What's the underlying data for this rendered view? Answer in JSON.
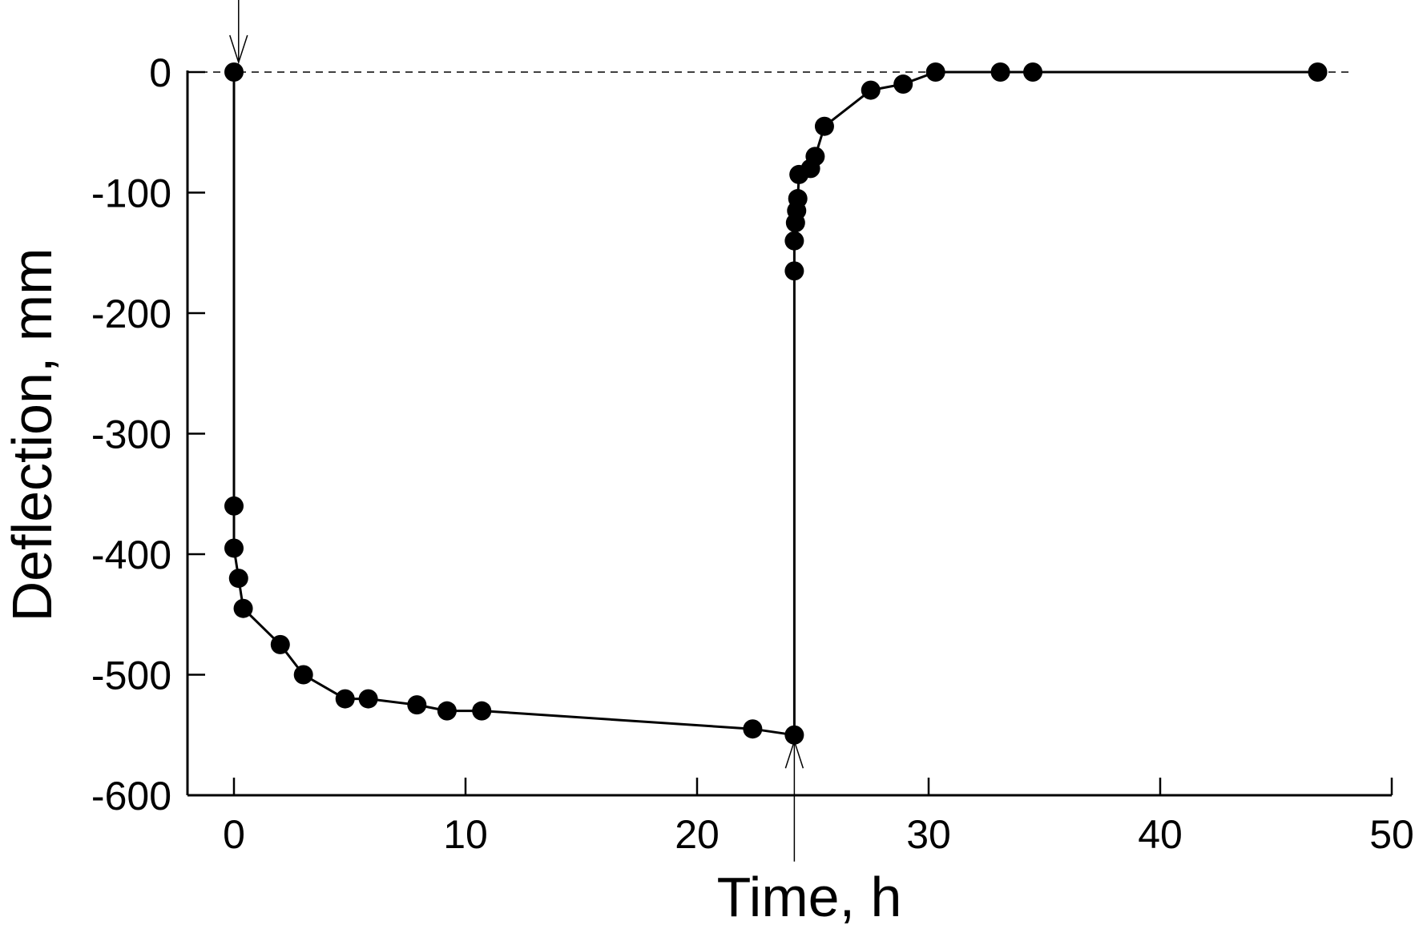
{
  "chart_data": {
    "type": "scatter",
    "title": "",
    "xlabel": "Time, h",
    "ylabel": "Deflection, mm",
    "xlim": [
      -2,
      50
    ],
    "ylim": [
      -600,
      10
    ],
    "xticks": [
      0,
      10,
      20,
      30,
      40,
      50
    ],
    "yticks": [
      0,
      -100,
      -200,
      -300,
      -400,
      -500,
      -600
    ],
    "xtick_labels": [
      "0",
      "10",
      "20",
      "30",
      "40",
      "50"
    ],
    "ytick_labels": [
      "0",
      "-100",
      "-200",
      "-300",
      "-400",
      "-500",
      "-600"
    ],
    "grid": false,
    "legend": "none",
    "reference_line": {
      "y": 0,
      "style": "dashed"
    },
    "series": [
      {
        "color": "#000000",
        "marker": "filled-circle",
        "x": [
          0,
          0,
          0,
          0.2,
          0.4,
          2.0,
          3.0,
          4.8,
          5.8,
          7.9,
          9.2,
          10.7,
          22.4,
          24.2,
          24.2,
          24.2,
          24.25,
          24.3,
          24.35,
          24.4,
          24.9,
          25.1,
          25.5,
          27.5,
          28.9,
          30.3,
          33.1,
          34.5,
          46.8
        ],
        "y": [
          0,
          -360,
          -395,
          -420,
          -445,
          -475,
          -500,
          -520,
          -520,
          -525,
          -530,
          -530,
          -545,
          -550,
          -165,
          -140,
          -125,
          -115,
          -105,
          -85,
          -80,
          -70,
          -45,
          -15,
          -10,
          0,
          0,
          0,
          0
        ]
      }
    ],
    "annotations": [
      {
        "type": "arrow",
        "x": 0.2,
        "direction": "down",
        "y_from": 60,
        "y_to": 8
      },
      {
        "type": "arrow",
        "x": 24.2,
        "direction": "up",
        "y_from": -655,
        "y_to": -555
      }
    ]
  }
}
